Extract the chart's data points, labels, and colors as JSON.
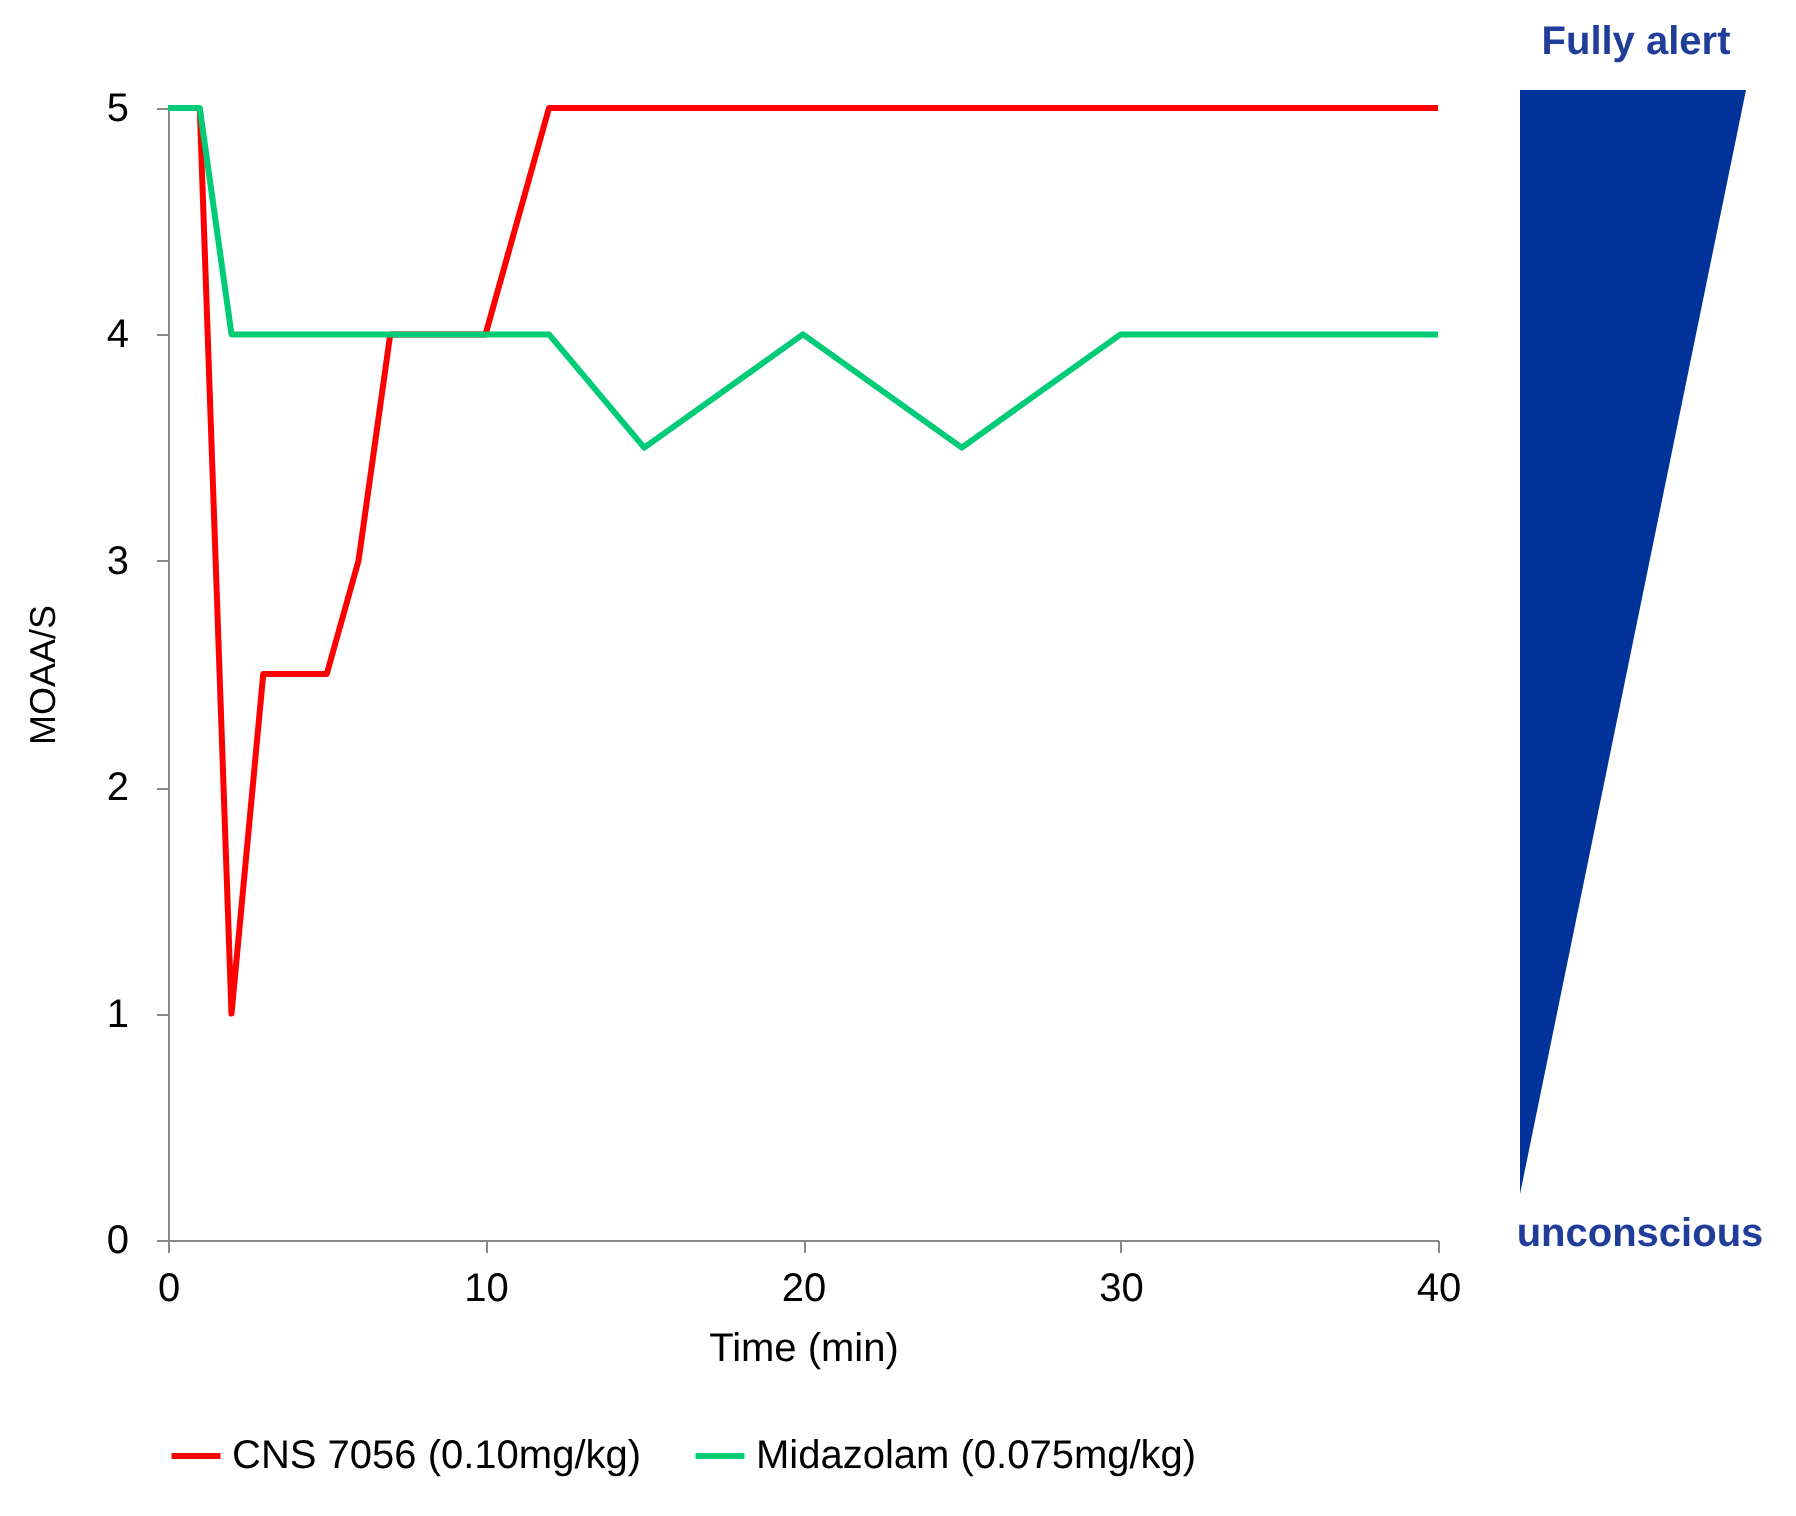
{
  "chart_data": {
    "type": "line",
    "xlabel": "Time (min)",
    "ylabel": "MOAA/S",
    "x": [
      0,
      1,
      2,
      3,
      5,
      6,
      7,
      10,
      12,
      15,
      20,
      25,
      30,
      35,
      40
    ],
    "series": [
      {
        "name": "CNS 7056 (0.10mg/kg)",
        "color": "#ff0000",
        "values": [
          null,
          5,
          1,
          2.5,
          2.5,
          3,
          4,
          4,
          5,
          5,
          5,
          5,
          5,
          5,
          5
        ]
      },
      {
        "name": "Midazolam (0.075mg/kg)",
        "color": "#00cc77",
        "values": [
          5,
          5,
          4,
          4,
          4,
          4,
          4,
          4,
          4,
          3.5,
          4,
          3.5,
          4,
          4,
          4
        ]
      }
    ],
    "xlim": [
      0,
      40
    ],
    "xticks": [
      0,
      10,
      20,
      30,
      40
    ],
    "ylim": [
      0,
      5
    ],
    "yticks": [
      0,
      1,
      2,
      3,
      4,
      5
    ],
    "grid": false,
    "legend": "bottom",
    "marker": "none",
    "line_style": "solid",
    "annotations": [
      "Fully alert",
      "unconscious"
    ]
  }
}
